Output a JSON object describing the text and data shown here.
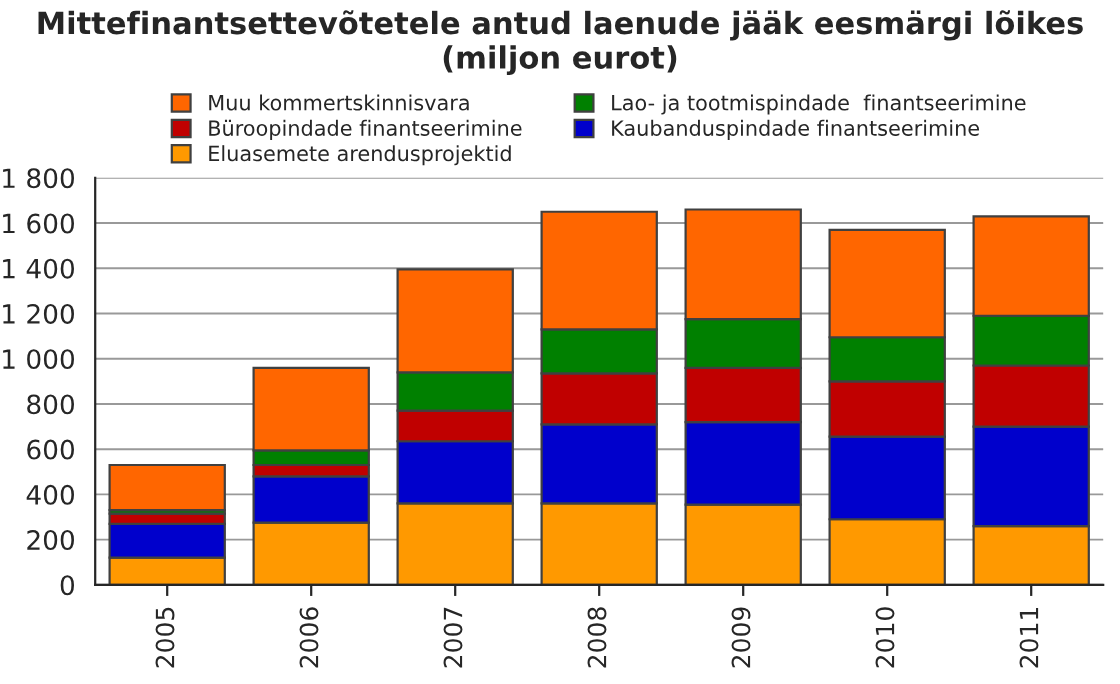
{
  "chart_data": {
    "type": "bar",
    "title": "Mittefinantsettevõtetele antud laenude jääk eesmärgi lõikes (miljon eurot)",
    "stacked": true,
    "categories": [
      "2005",
      "2006",
      "2007",
      "2008",
      "2009",
      "2010",
      "2011"
    ],
    "series": [
      {
        "name": "Eluasemete arendusprojektid",
        "color": "#ff9900",
        "values": [
          120,
          275,
          360,
          360,
          355,
          290,
          260
        ]
      },
      {
        "name": "Kaubanduspindade finantseerimine",
        "color": "#0000cc",
        "values": [
          150,
          205,
          275,
          350,
          365,
          365,
          440
        ]
      },
      {
        "name": "Büroopindade finantseerimine",
        "color": "#c00000",
        "values": [
          45,
          50,
          135,
          225,
          240,
          245,
          270
        ]
      },
      {
        "name": "Lao- ja tootmispindade  finantseerimine",
        "color": "#008000",
        "values": [
          15,
          65,
          170,
          195,
          215,
          195,
          220
        ]
      },
      {
        "name": "Muu kommertskinnisvara",
        "color": "#ff6600",
        "values": [
          200,
          365,
          455,
          520,
          485,
          475,
          440
        ]
      }
    ],
    "ylim": [
      0,
      1800
    ],
    "yticks": [
      0,
      200,
      400,
      600,
      800,
      {
        "value": 1000,
        "label": "1 000"
      },
      {
        "value": 1200,
        "label": "1 200"
      },
      {
        "value": 1400,
        "label": "1 400"
      },
      {
        "value": 1600,
        "label": "1 600"
      },
      {
        "value": 1800,
        "label": "1 800"
      }
    ],
    "grid": "y",
    "legend": "top"
  }
}
